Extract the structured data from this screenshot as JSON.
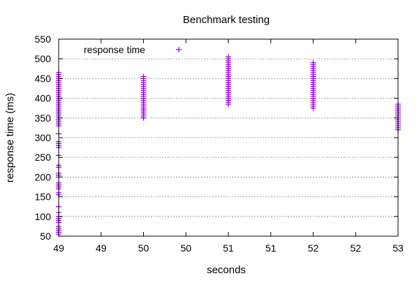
{
  "chart_data": {
    "type": "scatter",
    "title": "Benchmark testing",
    "xlabel": "seconds",
    "ylabel": "response time (ms)",
    "xlim": [
      49.0,
      53.0
    ],
    "ylim": [
      50,
      550
    ],
    "x_ticks": [
      49.0,
      49.5,
      50.0,
      50.5,
      51.0,
      51.5,
      52.0,
      52.5,
      53.0
    ],
    "x_tick_labels": [
      "49",
      "49",
      "50",
      "50",
      "51",
      "51",
      "52",
      "52",
      "53"
    ],
    "y_ticks": [
      50,
      100,
      150,
      200,
      250,
      300,
      350,
      400,
      450,
      500,
      550
    ],
    "y_tick_labels": [
      "50",
      "100",
      "150",
      "200",
      "250",
      "300",
      "350",
      "400",
      "450",
      "500",
      "550"
    ],
    "grid": true,
    "legend_position": "top-left",
    "color": "#9400d3",
    "series": [
      {
        "name": "response time",
        "marker": "plus",
        "points": [
          [
            49.0,
            55
          ],
          [
            49.0,
            60
          ],
          [
            49.0,
            65
          ],
          [
            49.0,
            70
          ],
          [
            49.0,
            75
          ],
          [
            49.0,
            85
          ],
          [
            49.0,
            90
          ],
          [
            49.0,
            95
          ],
          [
            49.0,
            100
          ],
          [
            49.0,
            110
          ],
          [
            49.0,
            125
          ],
          [
            49.0,
            155
          ],
          [
            49.0,
            160
          ],
          [
            49.0,
            170
          ],
          [
            49.0,
            175
          ],
          [
            49.0,
            180
          ],
          [
            49.0,
            185
          ],
          [
            49.0,
            200
          ],
          [
            49.0,
            205
          ],
          [
            49.0,
            210
          ],
          [
            49.0,
            225
          ],
          [
            49.0,
            230
          ],
          [
            49.0,
            255
          ],
          [
            49.0,
            275
          ],
          [
            49.0,
            280
          ],
          [
            49.0,
            285
          ],
          [
            49.0,
            290
          ],
          [
            49.0,
            310
          ],
          [
            49.0,
            330
          ],
          [
            49.0,
            335
          ],
          [
            49.0,
            340
          ],
          [
            49.0,
            345
          ],
          [
            49.0,
            350
          ],
          [
            49.0,
            355
          ],
          [
            49.0,
            360
          ],
          [
            49.0,
            365
          ],
          [
            49.0,
            370
          ],
          [
            49.0,
            375
          ],
          [
            49.0,
            380
          ],
          [
            49.0,
            385
          ],
          [
            49.0,
            390
          ],
          [
            49.0,
            395
          ],
          [
            49.0,
            400
          ],
          [
            49.0,
            405
          ],
          [
            49.0,
            410
          ],
          [
            49.0,
            415
          ],
          [
            49.0,
            420
          ],
          [
            49.0,
            425
          ],
          [
            49.0,
            430
          ],
          [
            49.0,
            435
          ],
          [
            49.0,
            440
          ],
          [
            49.0,
            445
          ],
          [
            49.0,
            450
          ],
          [
            49.0,
            455
          ],
          [
            49.0,
            460
          ],
          [
            49.0,
            465
          ],
          [
            50.0,
            350
          ],
          [
            50.0,
            355
          ],
          [
            50.0,
            360
          ],
          [
            50.0,
            365
          ],
          [
            50.0,
            370
          ],
          [
            50.0,
            375
          ],
          [
            50.0,
            380
          ],
          [
            50.0,
            385
          ],
          [
            50.0,
            390
          ],
          [
            50.0,
            395
          ],
          [
            50.0,
            400
          ],
          [
            50.0,
            405
          ],
          [
            50.0,
            410
          ],
          [
            50.0,
            415
          ],
          [
            50.0,
            420
          ],
          [
            50.0,
            425
          ],
          [
            50.0,
            430
          ],
          [
            50.0,
            435
          ],
          [
            50.0,
            440
          ],
          [
            50.0,
            445
          ],
          [
            50.0,
            450
          ],
          [
            50.0,
            455
          ],
          [
            51.0,
            385
          ],
          [
            51.0,
            390
          ],
          [
            51.0,
            395
          ],
          [
            51.0,
            400
          ],
          [
            51.0,
            405
          ],
          [
            51.0,
            410
          ],
          [
            51.0,
            415
          ],
          [
            51.0,
            420
          ],
          [
            51.0,
            425
          ],
          [
            51.0,
            430
          ],
          [
            51.0,
            435
          ],
          [
            51.0,
            440
          ],
          [
            51.0,
            445
          ],
          [
            51.0,
            450
          ],
          [
            51.0,
            455
          ],
          [
            51.0,
            460
          ],
          [
            51.0,
            465
          ],
          [
            51.0,
            470
          ],
          [
            51.0,
            475
          ],
          [
            51.0,
            480
          ],
          [
            51.0,
            485
          ],
          [
            51.0,
            490
          ],
          [
            51.0,
            495
          ],
          [
            51.0,
            500
          ],
          [
            51.0,
            505
          ],
          [
            52.0,
            375
          ],
          [
            52.0,
            380
          ],
          [
            52.0,
            385
          ],
          [
            52.0,
            390
          ],
          [
            52.0,
            395
          ],
          [
            52.0,
            400
          ],
          [
            52.0,
            405
          ],
          [
            52.0,
            410
          ],
          [
            52.0,
            415
          ],
          [
            52.0,
            420
          ],
          [
            52.0,
            425
          ],
          [
            52.0,
            430
          ],
          [
            52.0,
            435
          ],
          [
            52.0,
            440
          ],
          [
            52.0,
            445
          ],
          [
            52.0,
            450
          ],
          [
            52.0,
            455
          ],
          [
            52.0,
            460
          ],
          [
            52.0,
            465
          ],
          [
            52.0,
            470
          ],
          [
            52.0,
            475
          ],
          [
            52.0,
            480
          ],
          [
            52.0,
            485
          ],
          [
            52.0,
            490
          ],
          [
            53.0,
            320
          ],
          [
            53.0,
            325
          ],
          [
            53.0,
            330
          ],
          [
            53.0,
            335
          ],
          [
            53.0,
            340
          ],
          [
            53.0,
            345
          ],
          [
            53.0,
            350
          ],
          [
            53.0,
            355
          ],
          [
            53.0,
            360
          ],
          [
            53.0,
            365
          ],
          [
            53.0,
            370
          ],
          [
            53.0,
            375
          ],
          [
            53.0,
            380
          ],
          [
            53.0,
            385
          ]
        ]
      }
    ]
  }
}
